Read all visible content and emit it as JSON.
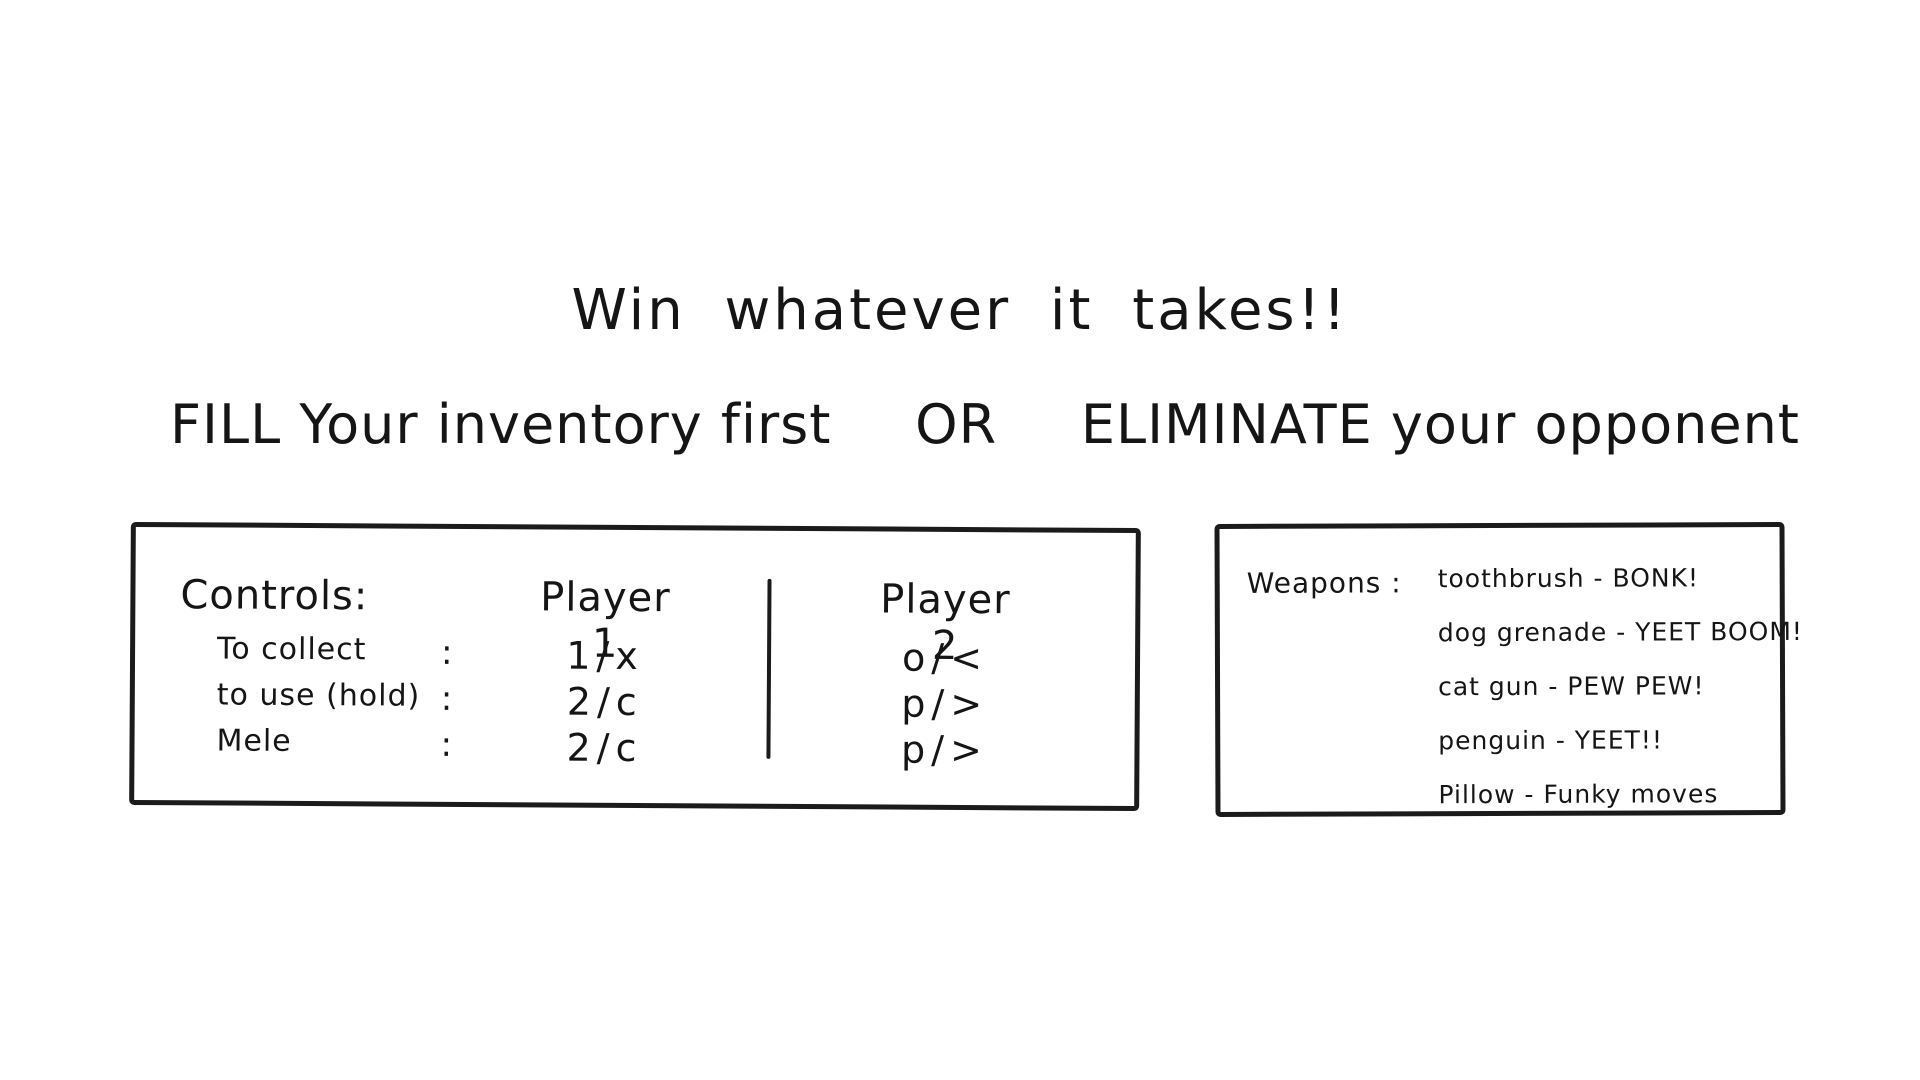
{
  "title": "Win whatever it takes!!",
  "subtitle": {
    "part1": "FILL Your inventory first",
    "connector": "OR",
    "part2": "ELIMINATE your opponent"
  },
  "controls": {
    "header": "Controls:",
    "player1_label": "Player 1",
    "player2_label": "Player 2",
    "rows": [
      {
        "action": "To collect",
        "colon": ":",
        "p1": "1/x",
        "p2": "o/<"
      },
      {
        "action": "to use (hold)",
        "colon": ":",
        "p1": "2/c",
        "p2": "p/>"
      },
      {
        "action": "Mele",
        "colon": ":",
        "p1": "2/c",
        "p2": "p/>"
      }
    ]
  },
  "weapons": {
    "label": "Weapons :",
    "items": [
      "toothbrush - BONK!",
      "dog grenade - YEET BOOM!",
      "cat gun - PEW PEW!",
      "penguin - YEET!!",
      "Pillow - Funky moves"
    ]
  }
}
